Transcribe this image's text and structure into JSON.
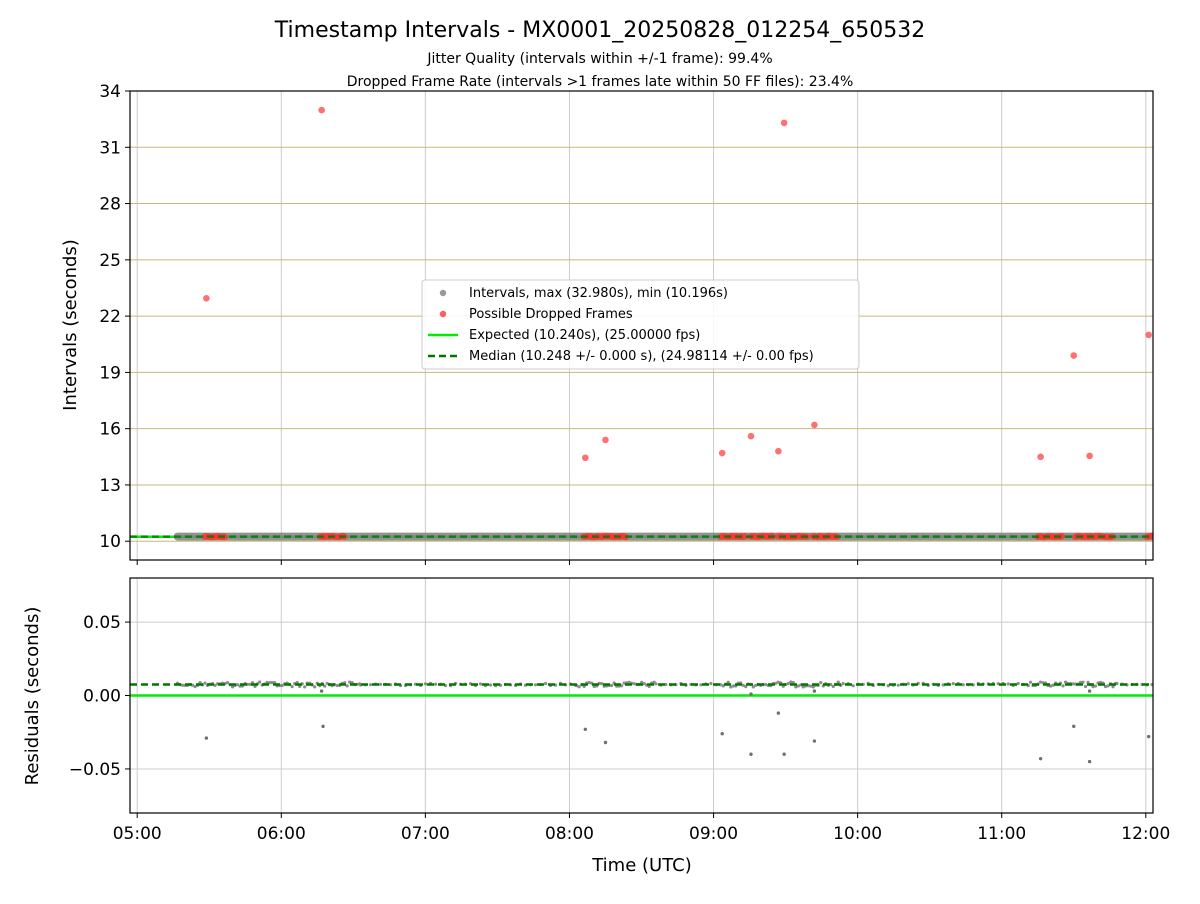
{
  "chart_data": [
    {
      "type": "scatter",
      "title": "Timestamp Intervals - MX0001_20250828_012254_650532",
      "subtitle_lines": [
        "Jitter Quality (intervals within +/-1 frame): 99.4%",
        "Dropped Frame Rate (intervals >1 frames late within 50 FF files): 23.4%"
      ],
      "xlabel": "",
      "ylabel": "Intervals (seconds)",
      "ylim": [
        9.0,
        34.0
      ],
      "yticks": [
        10,
        13,
        16,
        19,
        22,
        25,
        28,
        31,
        34
      ],
      "xlim_hours": [
        4.95,
        12.05
      ],
      "xticks": [
        5,
        6,
        7,
        8,
        9,
        10,
        11,
        12
      ],
      "grid": "on",
      "grid_colors": {
        "horizontal": "#c9b878",
        "vertical": "#cccccc"
      },
      "legend_placement": "center",
      "legend": [
        {
          "label": "Intervals, max (32.980s), min (10.196s)",
          "color": "#999999",
          "marker": "dot"
        },
        {
          "label": "Possible Dropped Frames",
          "color": "#ff3333",
          "marker": "dot"
        },
        {
          "label": "Expected (10.240s), (25.00000 fps)",
          "color": "#00ee00",
          "marker": "solid-line"
        },
        {
          "label": "Median (10.248 +/- 0.000 s), (24.98114 +/- 0.00 fps)",
          "color": "#007700",
          "marker": "dashed-line"
        }
      ],
      "expected_y": 10.24,
      "median_y": 10.248,
      "intervals_band": {
        "x_range_hours": [
          5.28,
          12.05
        ],
        "y": 10.248,
        "color": "#808080"
      },
      "dropped_clusters": [
        {
          "x_range_hours": [
            5.47,
            5.62
          ],
          "y": 10.25
        },
        {
          "x_range_hours": [
            6.27,
            6.44
          ],
          "y": 10.25
        },
        {
          "x_range_hours": [
            8.1,
            8.4
          ],
          "y": 10.25
        },
        {
          "x_range_hours": [
            9.05,
            9.22
          ],
          "y": 10.25
        },
        {
          "x_range_hours": [
            9.26,
            9.42
          ],
          "y": 10.25
        },
        {
          "x_range_hours": [
            9.45,
            9.65
          ],
          "y": 10.25
        },
        {
          "x_range_hours": [
            9.69,
            9.86
          ],
          "y": 10.25
        },
        {
          "x_range_hours": [
            11.25,
            11.42
          ],
          "y": 10.25
        },
        {
          "x_range_hours": [
            11.51,
            11.78
          ],
          "y": 10.25
        },
        {
          "x_range_hours": [
            12.01,
            12.05
          ],
          "y": 10.25
        }
      ],
      "dropped_points": [
        {
          "x_hours": 5.48,
          "y": 22.95
        },
        {
          "x_hours": 6.28,
          "y": 32.98
        },
        {
          "x_hours": 8.11,
          "y": 14.45
        },
        {
          "x_hours": 8.25,
          "y": 15.4
        },
        {
          "x_hours": 9.06,
          "y": 14.7
        },
        {
          "x_hours": 9.26,
          "y": 15.6
        },
        {
          "x_hours": 9.45,
          "y": 14.8
        },
        {
          "x_hours": 9.49,
          "y": 32.3
        },
        {
          "x_hours": 9.7,
          "y": 16.2
        },
        {
          "x_hours": 11.27,
          "y": 14.5
        },
        {
          "x_hours": 11.5,
          "y": 19.9
        },
        {
          "x_hours": 11.61,
          "y": 14.55
        },
        {
          "x_hours": 12.02,
          "y": 21.0
        }
      ]
    },
    {
      "type": "scatter",
      "title": "",
      "xlabel": "Time (UTC)",
      "ylabel": "Residuals (seconds)",
      "ylim": [
        -0.08,
        0.08
      ],
      "yticks": [
        0.05,
        0.0,
        -0.05
      ],
      "ytick_labels": [
        "0.05",
        "0.00",
        "−0.05"
      ],
      "xlim_hours": [
        4.95,
        12.05
      ],
      "xticks": [
        5,
        6,
        7,
        8,
        9,
        10,
        11,
        12
      ],
      "xtick_labels": [
        "05:00",
        "06:00",
        "07:00",
        "08:00",
        "09:00",
        "10:00",
        "11:00",
        "12:00"
      ],
      "grid": "on",
      "expected_y": 0.0,
      "median_y": 0.0075,
      "residual_band": {
        "x_range_hours": [
          5.28,
          12.05
        ],
        "y": 0.0075,
        "color": "#808080"
      },
      "outliers": [
        {
          "x_hours": 5.48,
          "y": -0.029
        },
        {
          "x_hours": 6.29,
          "y": -0.021
        },
        {
          "x_hours": 6.28,
          "y": 0.003
        },
        {
          "x_hours": 8.11,
          "y": -0.023
        },
        {
          "x_hours": 8.25,
          "y": -0.032
        },
        {
          "x_hours": 9.06,
          "y": -0.026
        },
        {
          "x_hours": 9.26,
          "y": -0.04
        },
        {
          "x_hours": 9.26,
          "y": 0.001
        },
        {
          "x_hours": 9.45,
          "y": -0.012
        },
        {
          "x_hours": 9.49,
          "y": -0.04
        },
        {
          "x_hours": 9.7,
          "y": -0.031
        },
        {
          "x_hours": 9.7,
          "y": 0.003
        },
        {
          "x_hours": 11.27,
          "y": -0.043
        },
        {
          "x_hours": 11.5,
          "y": -0.021
        },
        {
          "x_hours": 11.61,
          "y": -0.045
        },
        {
          "x_hours": 11.61,
          "y": 0.003
        },
        {
          "x_hours": 12.02,
          "y": -0.028
        }
      ]
    }
  ],
  "colors": {
    "dropped": "#ff3333",
    "interval": "#808080",
    "expected": "#00ee00",
    "median": "#007700"
  }
}
